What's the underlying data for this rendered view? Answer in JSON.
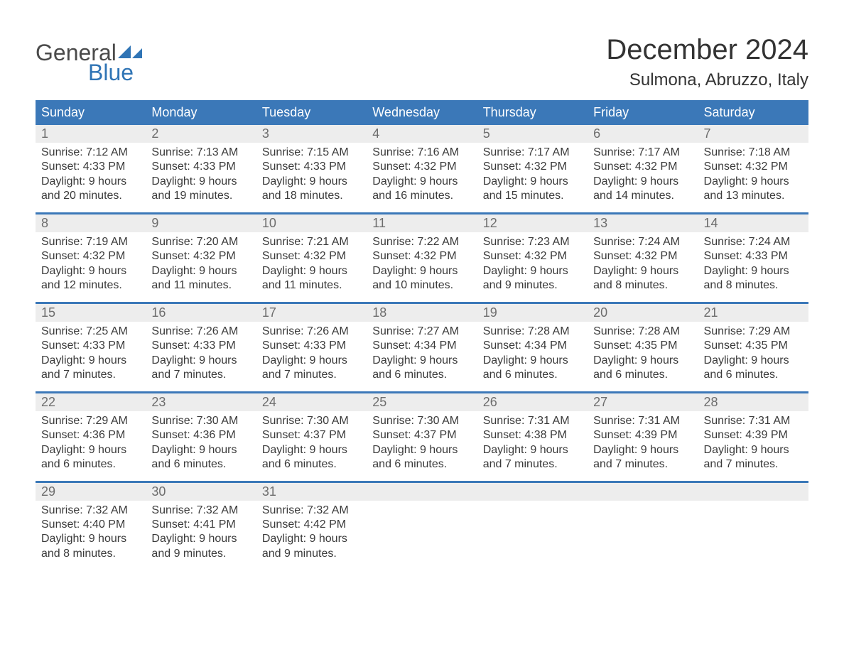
{
  "brand": {
    "word1": "General",
    "word2": "Blue",
    "text_color": "#4a4a4a",
    "accent_color": "#2f74b5"
  },
  "title": "December 2024",
  "location": "Sulmona, Abruzzo, Italy",
  "colors": {
    "header_bg": "#3b78b8",
    "header_text": "#ffffff",
    "daynum_bg": "#ededed",
    "daynum_text": "#6d6d6d",
    "body_text": "#3a3a3a",
    "page_bg": "#ffffff",
    "week_border": "#3b78b8"
  },
  "weekdays": [
    "Sunday",
    "Monday",
    "Tuesday",
    "Wednesday",
    "Thursday",
    "Friday",
    "Saturday"
  ],
  "weeks": [
    [
      {
        "n": "1",
        "sunrise": "Sunrise: 7:12 AM",
        "sunset": "Sunset: 4:33 PM",
        "d1": "Daylight: 9 hours",
        "d2": "and 20 minutes."
      },
      {
        "n": "2",
        "sunrise": "Sunrise: 7:13 AM",
        "sunset": "Sunset: 4:33 PM",
        "d1": "Daylight: 9 hours",
        "d2": "and 19 minutes."
      },
      {
        "n": "3",
        "sunrise": "Sunrise: 7:15 AM",
        "sunset": "Sunset: 4:33 PM",
        "d1": "Daylight: 9 hours",
        "d2": "and 18 minutes."
      },
      {
        "n": "4",
        "sunrise": "Sunrise: 7:16 AM",
        "sunset": "Sunset: 4:32 PM",
        "d1": "Daylight: 9 hours",
        "d2": "and 16 minutes."
      },
      {
        "n": "5",
        "sunrise": "Sunrise: 7:17 AM",
        "sunset": "Sunset: 4:32 PM",
        "d1": "Daylight: 9 hours",
        "d2": "and 15 minutes."
      },
      {
        "n": "6",
        "sunrise": "Sunrise: 7:17 AM",
        "sunset": "Sunset: 4:32 PM",
        "d1": "Daylight: 9 hours",
        "d2": "and 14 minutes."
      },
      {
        "n": "7",
        "sunrise": "Sunrise: 7:18 AM",
        "sunset": "Sunset: 4:32 PM",
        "d1": "Daylight: 9 hours",
        "d2": "and 13 minutes."
      }
    ],
    [
      {
        "n": "8",
        "sunrise": "Sunrise: 7:19 AM",
        "sunset": "Sunset: 4:32 PM",
        "d1": "Daylight: 9 hours",
        "d2": "and 12 minutes."
      },
      {
        "n": "9",
        "sunrise": "Sunrise: 7:20 AM",
        "sunset": "Sunset: 4:32 PM",
        "d1": "Daylight: 9 hours",
        "d2": "and 11 minutes."
      },
      {
        "n": "10",
        "sunrise": "Sunrise: 7:21 AM",
        "sunset": "Sunset: 4:32 PM",
        "d1": "Daylight: 9 hours",
        "d2": "and 11 minutes."
      },
      {
        "n": "11",
        "sunrise": "Sunrise: 7:22 AM",
        "sunset": "Sunset: 4:32 PM",
        "d1": "Daylight: 9 hours",
        "d2": "and 10 minutes."
      },
      {
        "n": "12",
        "sunrise": "Sunrise: 7:23 AM",
        "sunset": "Sunset: 4:32 PM",
        "d1": "Daylight: 9 hours",
        "d2": "and 9 minutes."
      },
      {
        "n": "13",
        "sunrise": "Sunrise: 7:24 AM",
        "sunset": "Sunset: 4:32 PM",
        "d1": "Daylight: 9 hours",
        "d2": "and 8 minutes."
      },
      {
        "n": "14",
        "sunrise": "Sunrise: 7:24 AM",
        "sunset": "Sunset: 4:33 PM",
        "d1": "Daylight: 9 hours",
        "d2": "and 8 minutes."
      }
    ],
    [
      {
        "n": "15",
        "sunrise": "Sunrise: 7:25 AM",
        "sunset": "Sunset: 4:33 PM",
        "d1": "Daylight: 9 hours",
        "d2": "and 7 minutes."
      },
      {
        "n": "16",
        "sunrise": "Sunrise: 7:26 AM",
        "sunset": "Sunset: 4:33 PM",
        "d1": "Daylight: 9 hours",
        "d2": "and 7 minutes."
      },
      {
        "n": "17",
        "sunrise": "Sunrise: 7:26 AM",
        "sunset": "Sunset: 4:33 PM",
        "d1": "Daylight: 9 hours",
        "d2": "and 7 minutes."
      },
      {
        "n": "18",
        "sunrise": "Sunrise: 7:27 AM",
        "sunset": "Sunset: 4:34 PM",
        "d1": "Daylight: 9 hours",
        "d2": "and 6 minutes."
      },
      {
        "n": "19",
        "sunrise": "Sunrise: 7:28 AM",
        "sunset": "Sunset: 4:34 PM",
        "d1": "Daylight: 9 hours",
        "d2": "and 6 minutes."
      },
      {
        "n": "20",
        "sunrise": "Sunrise: 7:28 AM",
        "sunset": "Sunset: 4:35 PM",
        "d1": "Daylight: 9 hours",
        "d2": "and 6 minutes."
      },
      {
        "n": "21",
        "sunrise": "Sunrise: 7:29 AM",
        "sunset": "Sunset: 4:35 PM",
        "d1": "Daylight: 9 hours",
        "d2": "and 6 minutes."
      }
    ],
    [
      {
        "n": "22",
        "sunrise": "Sunrise: 7:29 AM",
        "sunset": "Sunset: 4:36 PM",
        "d1": "Daylight: 9 hours",
        "d2": "and 6 minutes."
      },
      {
        "n": "23",
        "sunrise": "Sunrise: 7:30 AM",
        "sunset": "Sunset: 4:36 PM",
        "d1": "Daylight: 9 hours",
        "d2": "and 6 minutes."
      },
      {
        "n": "24",
        "sunrise": "Sunrise: 7:30 AM",
        "sunset": "Sunset: 4:37 PM",
        "d1": "Daylight: 9 hours",
        "d2": "and 6 minutes."
      },
      {
        "n": "25",
        "sunrise": "Sunrise: 7:30 AM",
        "sunset": "Sunset: 4:37 PM",
        "d1": "Daylight: 9 hours",
        "d2": "and 6 minutes."
      },
      {
        "n": "26",
        "sunrise": "Sunrise: 7:31 AM",
        "sunset": "Sunset: 4:38 PM",
        "d1": "Daylight: 9 hours",
        "d2": "and 7 minutes."
      },
      {
        "n": "27",
        "sunrise": "Sunrise: 7:31 AM",
        "sunset": "Sunset: 4:39 PM",
        "d1": "Daylight: 9 hours",
        "d2": "and 7 minutes."
      },
      {
        "n": "28",
        "sunrise": "Sunrise: 7:31 AM",
        "sunset": "Sunset: 4:39 PM",
        "d1": "Daylight: 9 hours",
        "d2": "and 7 minutes."
      }
    ],
    [
      {
        "n": "29",
        "sunrise": "Sunrise: 7:32 AM",
        "sunset": "Sunset: 4:40 PM",
        "d1": "Daylight: 9 hours",
        "d2": "and 8 minutes."
      },
      {
        "n": "30",
        "sunrise": "Sunrise: 7:32 AM",
        "sunset": "Sunset: 4:41 PM",
        "d1": "Daylight: 9 hours",
        "d2": "and 9 minutes."
      },
      {
        "n": "31",
        "sunrise": "Sunrise: 7:32 AM",
        "sunset": "Sunset: 4:42 PM",
        "d1": "Daylight: 9 hours",
        "d2": "and 9 minutes."
      },
      {
        "empty": true
      },
      {
        "empty": true
      },
      {
        "empty": true
      },
      {
        "empty": true
      }
    ]
  ]
}
